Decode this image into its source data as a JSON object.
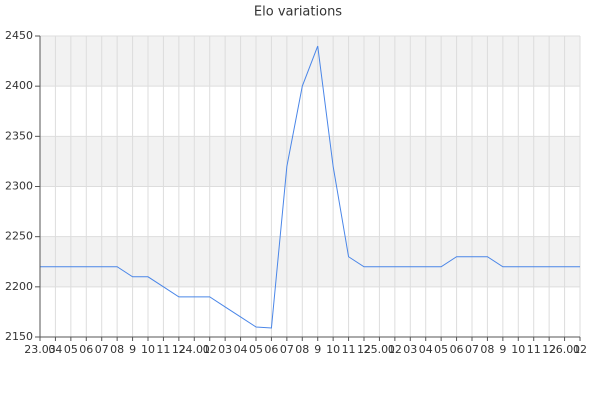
{
  "chart_data": {
    "type": "line",
    "title": "Elo variations",
    "categories": [
      "23.03",
      "04",
      "05",
      "06",
      "07",
      "08",
      "9",
      "10",
      "11",
      "12",
      "24.01",
      "02",
      "03",
      "04",
      "05",
      "06",
      "07",
      "08",
      "9",
      "10",
      "11",
      "12",
      "25.01",
      "02",
      "03",
      "04",
      "05",
      "06",
      "07",
      "08",
      "9",
      "10",
      "11",
      "12",
      "26.01",
      "02"
    ],
    "values": [
      2220,
      2220,
      2220,
      2220,
      2220,
      2220,
      2210,
      2210,
      2200,
      2190,
      2190,
      2190,
      2180,
      2170,
      2160,
      2159,
      2320,
      2400,
      2440,
      2320,
      2230,
      2220,
      2220,
      2220,
      2220,
      2220,
      2220,
      2230,
      2230,
      2230,
      2220,
      2220,
      2220,
      2220,
      2220,
      2220
    ],
    "color": "#4a86e8",
    "ylim": [
      2150,
      2450
    ],
    "yticks": [
      2150,
      2200,
      2250,
      2300,
      2350,
      2400,
      2450
    ],
    "grid": true,
    "alternate_bands": true
  }
}
